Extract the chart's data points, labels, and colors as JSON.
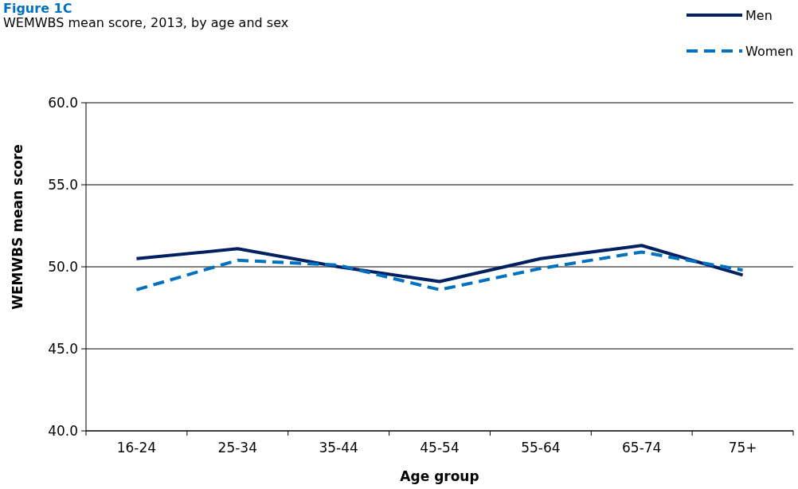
{
  "chart_data": {
    "type": "line",
    "title": "Figure 1C",
    "subtitle": "WEMWBS mean score, 2013, by age and sex",
    "xlabel": "Age group",
    "ylabel": "WEMWBS mean score",
    "categories": [
      "16-24",
      "25-34",
      "35-44",
      "45-54",
      "55-64",
      "65-74",
      "75+"
    ],
    "series": [
      {
        "name": "Men",
        "color": "#002060",
        "line_style": "solid",
        "values": [
          50.5,
          51.1,
          50.0,
          49.1,
          50.5,
          51.3,
          49.5
        ]
      },
      {
        "name": "Women",
        "color": "#0070c0",
        "line_style": "dashed",
        "values": [
          48.6,
          50.4,
          50.1,
          48.6,
          49.9,
          50.9,
          49.8
        ]
      }
    ],
    "ylim": [
      40,
      60
    ],
    "yticks": [
      {
        "value": 40,
        "label": "40.0"
      },
      {
        "value": 45,
        "label": "45.0"
      },
      {
        "value": 50,
        "label": "50.0"
      },
      {
        "value": 55,
        "label": "55.0"
      },
      {
        "value": 60,
        "label": "60.0"
      }
    ],
    "grid": "y",
    "legend": "top right",
    "marker": "none"
  }
}
